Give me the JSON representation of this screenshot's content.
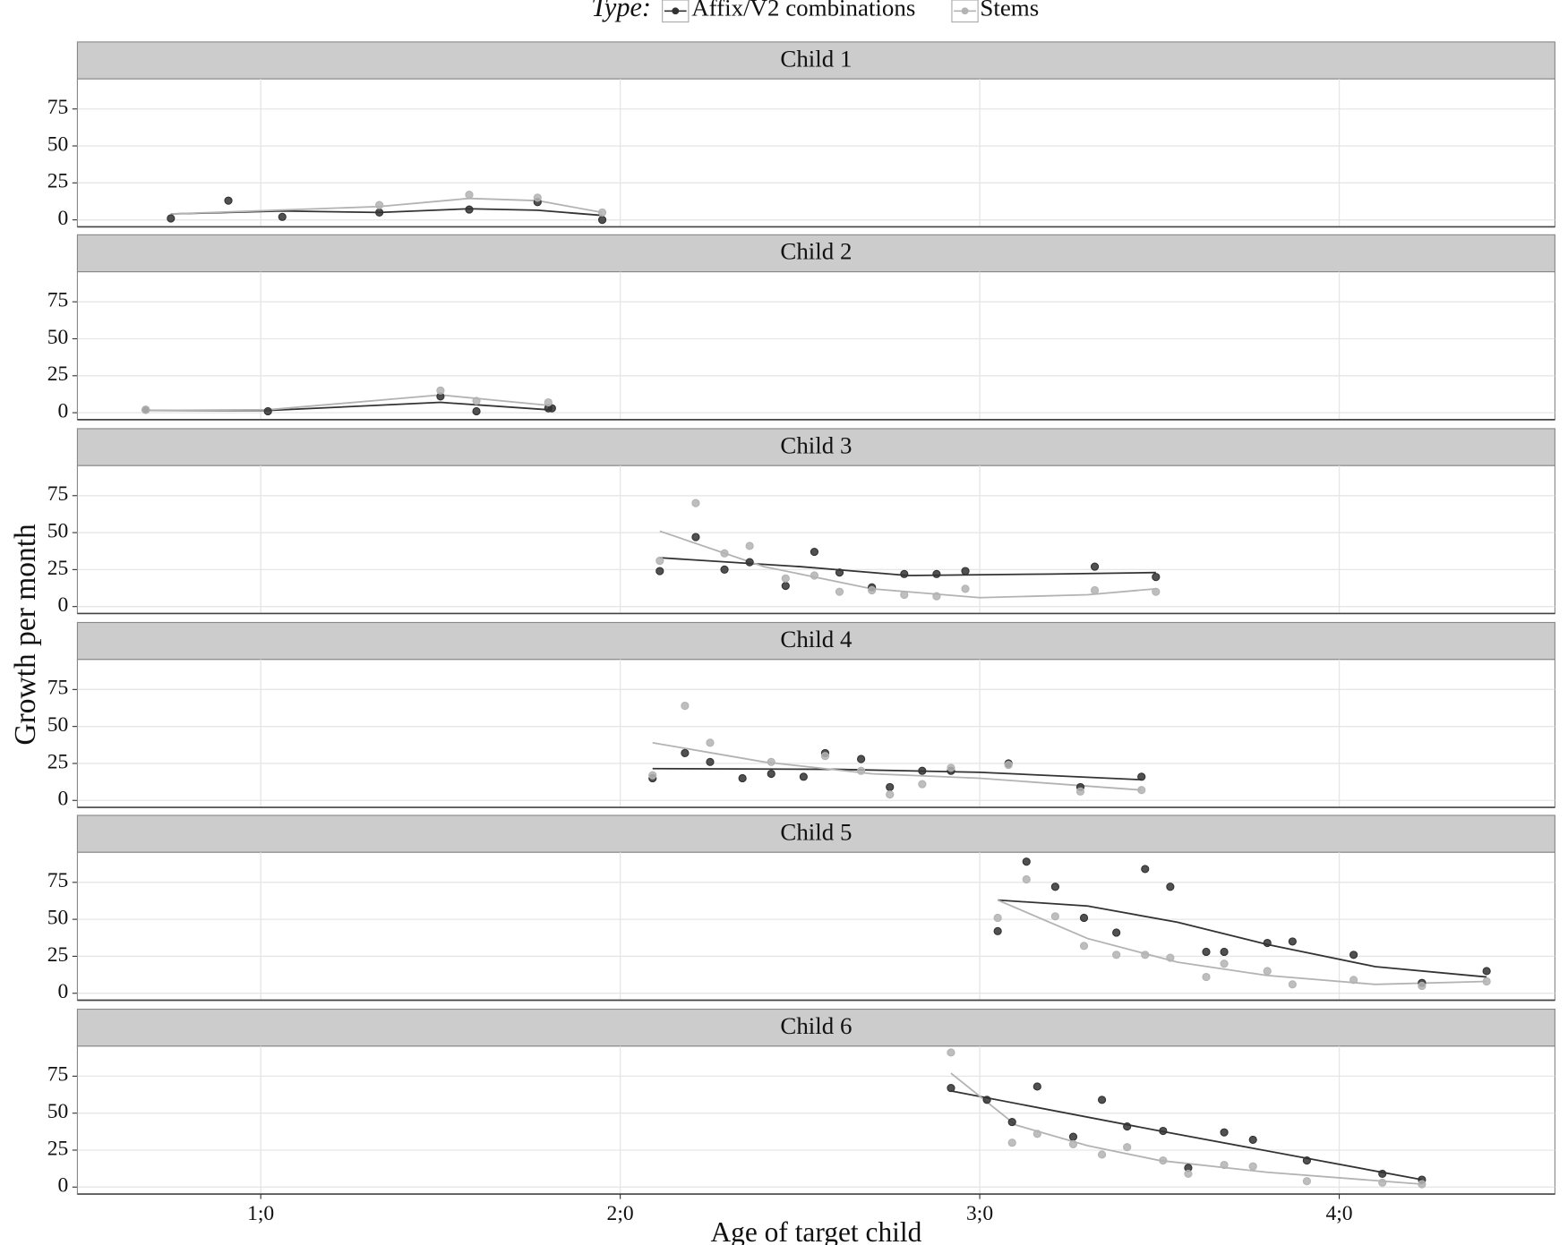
{
  "chart_data": {
    "type": "scatter",
    "legend_title": "Type:",
    "series": [
      {
        "name": "Affix/V2 combinations",
        "color": "#333333"
      },
      {
        "name": "Stems",
        "color": "#b3b3b3"
      }
    ],
    "xlabel": "Age of target child",
    "ylabel": "Growth per month",
    "xlim": [
      0.49,
      4.6
    ],
    "xticks": [
      {
        "value": 1,
        "label": "1;0"
      },
      {
        "value": 2,
        "label": "2;0"
      },
      {
        "value": 3,
        "label": "3;0"
      },
      {
        "value": 4,
        "label": "4;0"
      }
    ],
    "ylim": [
      -4.7,
      95.3
    ],
    "yticks": [
      0,
      25,
      50,
      75
    ],
    "grid": true,
    "panels": [
      {
        "title": "Child 1",
        "series": [
          {
            "x": [
              0.75,
              0.91,
              1.06,
              1.33,
              1.58,
              1.77,
              1.95
            ],
            "values": [
              1,
              13,
              2,
              5,
              7,
              12,
              0
            ],
            "fit_x": [
              0.75,
              1.06,
              1.33,
              1.58,
              1.77,
              1.95
            ],
            "fit_values": [
              4,
              6,
              5,
              7.5,
              6.5,
              3
            ]
          },
          {
            "x": [
              1.33,
              1.58,
              1.77,
              1.95
            ],
            "values": [
              10,
              17,
              15,
              5
            ],
            "fit_x": [
              0.75,
              1.33,
              1.58,
              1.77,
              1.95
            ],
            "fit_values": [
              4,
              9,
              14.5,
              13,
              5
            ]
          }
        ]
      },
      {
        "title": "Child 2",
        "series": [
          {
            "x": [
              0.68,
              1.02,
              1.5,
              1.6,
              1.8,
              1.81
            ],
            "values": [
              2,
              1,
              11,
              1,
              3,
              3
            ],
            "fit_x": [
              0.68,
              1.02,
              1.5,
              1.8
            ],
            "fit_values": [
              1.5,
              1.5,
              7,
              2
            ]
          },
          {
            "x": [
              0.68,
              1.5,
              1.6,
              1.8
            ],
            "values": [
              2,
              15,
              8,
              7
            ],
            "fit_x": [
              0.68,
              1.02,
              1.5,
              1.8
            ],
            "fit_values": [
              1.5,
              2,
              12,
              5
            ]
          }
        ]
      },
      {
        "title": "Child 3",
        "series": [
          {
            "x": [
              2.11,
              2.21,
              2.29,
              2.36,
              2.46,
              2.54,
              2.61,
              2.7,
              2.79,
              2.88,
              2.96,
              3.32,
              3.49
            ],
            "values": [
              24,
              47,
              25,
              30,
              14,
              37,
              23,
              13,
              22,
              22,
              24,
              27,
              20
            ],
            "fit_x": [
              2.11,
              2.5,
              2.8,
              3.2,
              3.49
            ],
            "fit_values": [
              33,
              27,
              21,
              22,
              23
            ]
          },
          {
            "x": [
              2.11,
              2.21,
              2.29,
              2.36,
              2.46,
              2.54,
              2.61,
              2.7,
              2.79,
              2.88,
              2.96,
              3.32,
              3.49
            ],
            "values": [
              31,
              70,
              36,
              41,
              19,
              21,
              10,
              11,
              8,
              7,
              12,
              11,
              10
            ],
            "fit_x": [
              2.11,
              2.4,
              2.7,
              3.0,
              3.3,
              3.49
            ],
            "fit_values": [
              51,
              27,
              12,
              6,
              8,
              12
            ]
          }
        ]
      },
      {
        "title": "Child 4",
        "series": [
          {
            "x": [
              2.09,
              2.18,
              2.25,
              2.34,
              2.42,
              2.51,
              2.57,
              2.67,
              2.75,
              2.84,
              2.92,
              3.08,
              3.28,
              3.45
            ],
            "values": [
              15,
              32,
              26,
              15,
              18,
              16,
              32,
              28,
              9,
              20,
              20,
              25,
              9,
              16
            ],
            "fit_x": [
              2.09,
              2.6,
              3.0,
              3.45
            ],
            "fit_values": [
              21.5,
              21,
              19,
              14
            ]
          },
          {
            "x": [
              2.09,
              2.18,
              2.25,
              2.42,
              2.57,
              2.67,
              2.75,
              2.84,
              2.92,
              3.08,
              3.28,
              3.45
            ],
            "values": [
              17,
              64,
              39,
              26,
              30,
              20,
              4,
              11,
              22,
              24,
              6,
              7
            ],
            "fit_x": [
              2.09,
              2.4,
              2.7,
              3.0,
              3.45
            ],
            "fit_values": [
              39,
              26,
              18,
              15,
              7
            ]
          }
        ]
      },
      {
        "title": "Child 5",
        "series": [
          {
            "x": [
              3.05,
              3.13,
              3.21,
              3.29,
              3.38,
              3.46,
              3.53,
              3.63,
              3.68,
              3.8,
              3.87,
              4.04,
              4.23,
              4.41
            ],
            "values": [
              42,
              89,
              72,
              51,
              41,
              84,
              72,
              28,
              28,
              34,
              35,
              26,
              7,
              15
            ],
            "fit_x": [
              3.05,
              3.3,
              3.55,
              3.8,
              4.1,
              4.41
            ],
            "fit_values": [
              63,
              59,
              48,
              33,
              18,
              11
            ]
          },
          {
            "x": [
              3.05,
              3.13,
              3.21,
              3.29,
              3.38,
              3.46,
              3.53,
              3.63,
              3.68,
              3.8,
              3.87,
              4.04,
              4.23,
              4.41
            ],
            "values": [
              51,
              77,
              52,
              32,
              26,
              26,
              24,
              11,
              20,
              15,
              6,
              9,
              5,
              8
            ],
            "fit_x": [
              3.05,
              3.3,
              3.55,
              3.8,
              4.1,
              4.41
            ],
            "fit_values": [
              63,
              37,
              21,
              12,
              6,
              8
            ]
          }
        ]
      },
      {
        "title": "Child 6",
        "series": [
          {
            "x": [
              2.92,
              3.02,
              3.09,
              3.16,
              3.26,
              3.34,
              3.41,
              3.51,
              3.58,
              3.68,
              3.76,
              3.91,
              4.12,
              4.23
            ],
            "values": [
              67,
              59,
              44,
              68,
              34,
              59,
              41,
              38,
              13,
              37,
              32,
              18,
              9,
              5
            ],
            "fit_x": [
              2.92,
              3.5,
              4.23
            ],
            "fit_values": [
              65,
              38,
              5
            ]
          },
          {
            "x": [
              2.92,
              3.09,
              3.16,
              3.26,
              3.34,
              3.41,
              3.51,
              3.58,
              3.68,
              3.76,
              3.91,
              4.12,
              4.23
            ],
            "values": [
              91,
              30,
              36,
              29,
              22,
              27,
              18,
              9,
              15,
              14,
              4,
              3,
              2
            ],
            "fit_x": [
              2.92,
              3.1,
              3.3,
              3.5,
              3.8,
              4.23
            ],
            "fit_values": [
              77,
              42,
              28,
              18,
              10,
              2
            ]
          }
        ]
      }
    ]
  }
}
